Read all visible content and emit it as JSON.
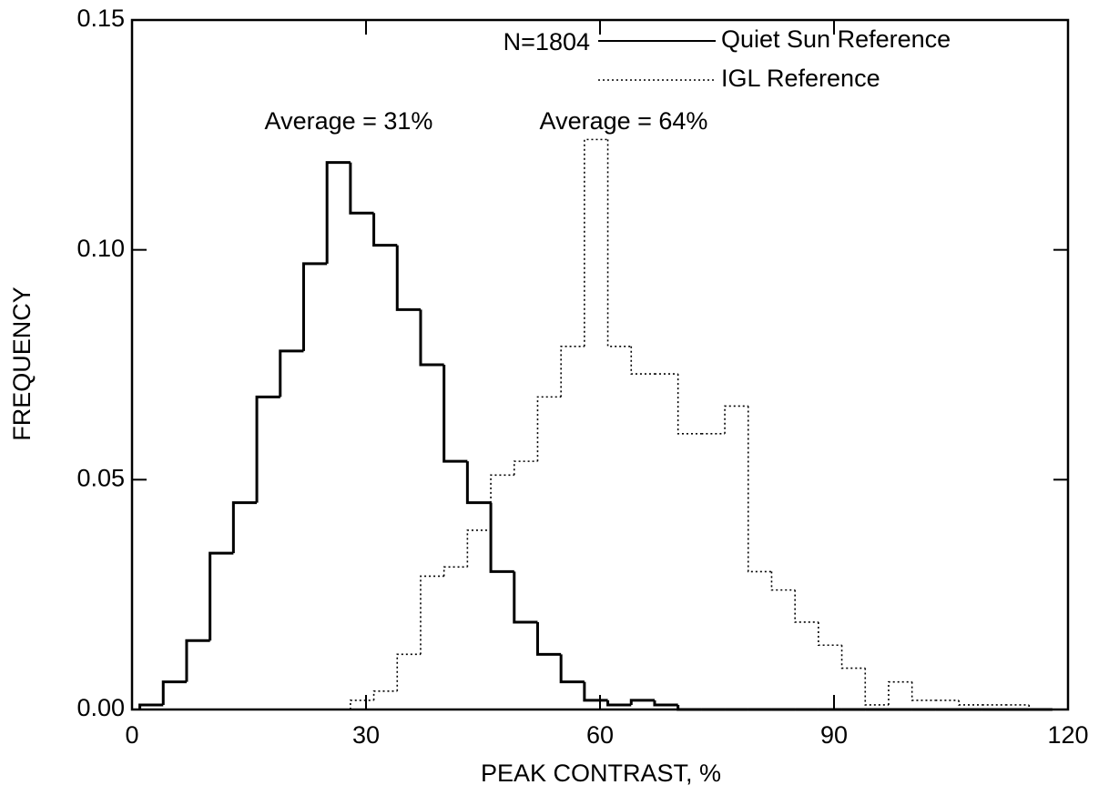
{
  "chart_data": {
    "type": "histogram",
    "xlabel": "PEAK CONTRAST, %",
    "ylabel": "FREQUENCY",
    "annotations": [
      "N=1804",
      "Average = 31%",
      "Average = 64%"
    ],
    "bins": [
      1,
      4,
      7,
      10,
      13,
      16,
      19,
      22,
      25,
      28,
      31,
      34,
      37,
      40,
      43,
      46,
      49,
      52,
      55,
      58,
      61,
      64,
      67,
      70,
      73,
      76,
      79,
      82,
      85,
      88,
      91,
      94,
      97,
      100,
      103,
      106,
      109,
      112,
      115,
      118
    ],
    "series": [
      {
        "name": "Quiet Sun Reference",
        "color": "#000000",
        "linestyle": "solid",
        "values": [
          0.001,
          0.006,
          0.015,
          0.034,
          0.045,
          0.068,
          0.078,
          0.097,
          0.119,
          0.108,
          0.101,
          0.087,
          0.075,
          0.054,
          0.045,
          0.03,
          0.019,
          0.012,
          0.006,
          0.002,
          0.001,
          0.002,
          0.001,
          0,
          0,
          0,
          0,
          0,
          0,
          0,
          0,
          0,
          0,
          0,
          0,
          0,
          0,
          0,
          0
        ]
      },
      {
        "name": "IGL Reference",
        "color": "#000000",
        "linestyle": "dotted",
        "values": [
          0,
          0,
          0,
          0,
          0,
          0,
          0,
          0,
          0,
          0.002,
          0.004,
          0.012,
          0.029,
          0.031,
          0.039,
          0.051,
          0.054,
          0.068,
          0.079,
          0.124,
          0.079,
          0.073,
          0.073,
          0.06,
          0.06,
          0.066,
          0.03,
          0.026,
          0.019,
          0.014,
          0.009,
          0.001,
          0.006,
          0.002,
          0.002,
          0.001,
          0.001,
          0.001,
          0
        ]
      }
    ],
    "xlim": [
      0,
      120
    ],
    "xticks": [
      0,
      30,
      60,
      90,
      120
    ],
    "ylim": [
      0,
      0.15
    ],
    "yticks": [
      {
        "value": 0,
        "label": "0.00"
      },
      {
        "value": 0.05,
        "label": "0.05"
      },
      {
        "value": 0.1,
        "label": "0.10"
      },
      {
        "value": 0.15,
        "label": "0.15"
      }
    ],
    "grid": false
  }
}
